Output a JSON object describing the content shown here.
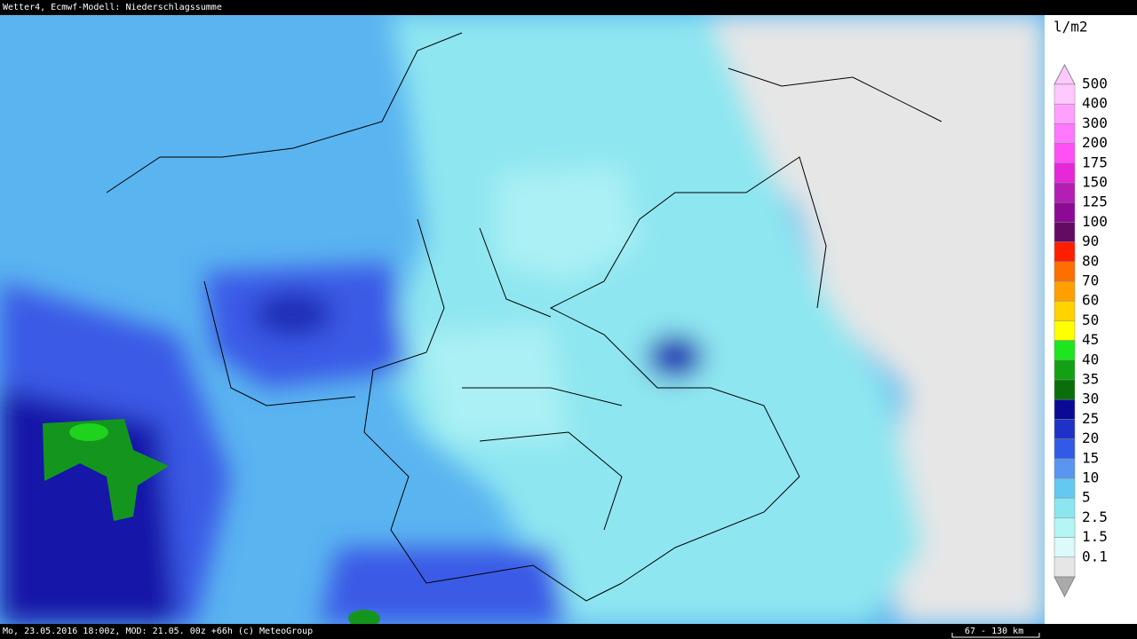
{
  "header": {
    "title": "Wetter4, Ecmwf-Modell: Niederschlagssumme"
  },
  "legend": {
    "unit": "l/m2",
    "levels": [
      {
        "label": "500",
        "color": "#ffc8ff"
      },
      {
        "label": "400",
        "color": "#ffa0ff"
      },
      {
        "label": "300",
        "color": "#ff78ff"
      },
      {
        "label": "200",
        "color": "#ff50f5"
      },
      {
        "label": "175",
        "color": "#e628d8"
      },
      {
        "label": "150",
        "color": "#b41eb4"
      },
      {
        "label": "125",
        "color": "#8c0a96"
      },
      {
        "label": "100",
        "color": "#640a64"
      },
      {
        "label": "90",
        "color": "#ff1e00"
      },
      {
        "label": "80",
        "color": "#ff6e00"
      },
      {
        "label": "70",
        "color": "#ffa000"
      },
      {
        "label": "60",
        "color": "#ffd200"
      },
      {
        "label": "50",
        "color": "#ffff00"
      },
      {
        "label": "45",
        "color": "#1ee61e"
      },
      {
        "label": "40",
        "color": "#14a014"
      },
      {
        "label": "35",
        "color": "#0a6e0a"
      },
      {
        "label": "30",
        "color": "#0a0a96"
      },
      {
        "label": "25",
        "color": "#1e32c8"
      },
      {
        "label": "20",
        "color": "#325ae6"
      },
      {
        "label": "15",
        "color": "#5a96f0"
      },
      {
        "label": "10",
        "color": "#64c8f0"
      },
      {
        "label": "5",
        "color": "#8ce6f0"
      },
      {
        "label": "2.5",
        "color": "#b4f5f5"
      },
      {
        "label": "1.5",
        "color": "#dcfafa"
      },
      {
        "label": "0.1",
        "color": "#e6e6e6"
      }
    ]
  },
  "footer": {
    "info": "Mo, 23.05.2016 18:00z, MOD: 21.05. 00z +66h (c) MeteoGroup",
    "scale": "67 - 130 km"
  }
}
